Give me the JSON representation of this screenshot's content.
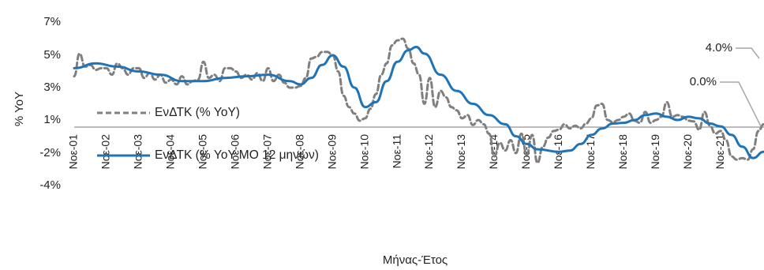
{
  "chart_data": {
    "type": "line",
    "xlabel": "Μήνας-Έτος",
    "ylabel": "% YoY",
    "x_unit": "month",
    "x_start": "Noε-01",
    "ylim": [
      -4,
      7
    ],
    "y_ticks": [
      "7%",
      "5%",
      "3%",
      "1%",
      "-2%",
      "-4%"
    ],
    "y_tick_values": [
      7,
      5,
      3,
      1,
      -2,
      -4
    ],
    "x_tick_labels": [
      "Noε-01",
      "Noε-02",
      "Noε-03",
      "Noε-04",
      "Noε-05",
      "Noε-06",
      "Noε-07",
      "Noε-08",
      "Noε-09",
      "Noε-10",
      "Noε-11",
      "Noε-12",
      "Noε-13",
      "Noε-14",
      "Noε-15",
      "Noε-16",
      "Noε-17",
      "Noε-18",
      "Noε-19",
      "Noε-20",
      "Noε-21"
    ],
    "grid": false,
    "reference_line": 0,
    "legend_position": "left-center",
    "annotations": [
      {
        "label": "4.0%",
        "month": 240,
        "value": 4.0
      },
      {
        "label": "0.0%",
        "month": 240,
        "value": 0.0
      }
    ],
    "colors": {
      "yoy": "#7f7f7f",
      "ma12": "#1f73b7",
      "reference": "#a6a6a6"
    },
    "series": [
      {
        "name": "ΕνΔΤΚ (% YoY)",
        "style": "dashed",
        "knots": [
          [
            0,
            3.7
          ],
          [
            2,
            5.1
          ],
          [
            4,
            4.3
          ],
          [
            6,
            4.4
          ],
          [
            8,
            4.1
          ],
          [
            10,
            4.2
          ],
          [
            12,
            4.2
          ],
          [
            14,
            3.8
          ],
          [
            16,
            4.5
          ],
          [
            18,
            4.2
          ],
          [
            20,
            3.8
          ],
          [
            22,
            4.2
          ],
          [
            24,
            4.2
          ],
          [
            26,
            3.6
          ],
          [
            28,
            3.9
          ],
          [
            30,
            3.5
          ],
          [
            32,
            3.8
          ],
          [
            34,
            3.3
          ],
          [
            36,
            3.5
          ],
          [
            38,
            3.2
          ],
          [
            40,
            3.7
          ],
          [
            42,
            3.2
          ],
          [
            44,
            3.4
          ],
          [
            46,
            3.5
          ],
          [
            48,
            4.6
          ],
          [
            50,
            3.6
          ],
          [
            52,
            3.8
          ],
          [
            54,
            3.4
          ],
          [
            56,
            4.2
          ],
          [
            58,
            4.2
          ],
          [
            60,
            4.0
          ],
          [
            62,
            3.6
          ],
          [
            64,
            3.8
          ],
          [
            66,
            3.5
          ],
          [
            68,
            3.9
          ],
          [
            70,
            3.4
          ],
          [
            72,
            4.2
          ],
          [
            74,
            3.4
          ],
          [
            76,
            3.8
          ],
          [
            78,
            3.3
          ],
          [
            80,
            3.0
          ],
          [
            82,
            3.0
          ],
          [
            84,
            3.1
          ],
          [
            86,
            3.6
          ],
          [
            88,
            4.8
          ],
          [
            90,
            4.9
          ],
          [
            92,
            5.2
          ],
          [
            94,
            5.2
          ],
          [
            96,
            5.0
          ],
          [
            98,
            4.0
          ],
          [
            100,
            2.5
          ],
          [
            102,
            1.8
          ],
          [
            104,
            1.4
          ],
          [
            106,
            0.9
          ],
          [
            108,
            1.1
          ],
          [
            110,
            1.7
          ],
          [
            112,
            2.6
          ],
          [
            114,
            3.8
          ],
          [
            116,
            4.5
          ],
          [
            118,
            5.6
          ],
          [
            120,
            5.9
          ],
          [
            122,
            6.0
          ],
          [
            124,
            5.4
          ],
          [
            126,
            4.5
          ],
          [
            128,
            3.8
          ],
          [
            130,
            2.0
          ],
          [
            132,
            3.6
          ],
          [
            134,
            1.8
          ],
          [
            136,
            2.8
          ],
          [
            138,
            2.4
          ],
          [
            140,
            1.8
          ],
          [
            142,
            1.6
          ],
          [
            144,
            1.1
          ],
          [
            146,
            1.3
          ],
          [
            148,
            0.3
          ],
          [
            150,
            1.0
          ],
          [
            152,
            0.4
          ],
          [
            154,
            -0.5
          ],
          [
            156,
            -2.2
          ],
          [
            158,
            -1.2
          ],
          [
            160,
            -1.8
          ],
          [
            162,
            -1.0
          ],
          [
            164,
            -2.0
          ],
          [
            166,
            -0.5
          ],
          [
            168,
            -2.1
          ],
          [
            170,
            -0.6
          ],
          [
            172,
            -2.6
          ],
          [
            174,
            -1.5
          ],
          [
            176,
            -0.8
          ],
          [
            178,
            -0.3
          ],
          [
            180,
            -0.2
          ],
          [
            182,
            0.4
          ],
          [
            184,
            -0.1
          ],
          [
            186,
            0.2
          ],
          [
            188,
            -0.1
          ],
          [
            190,
            0.5
          ],
          [
            192,
            1.1
          ],
          [
            194,
            1.9
          ],
          [
            196,
            2.0
          ],
          [
            198,
            1.0
          ],
          [
            200,
            0.7
          ],
          [
            202,
            1.0
          ],
          [
            204,
            1.2
          ],
          [
            206,
            1.4
          ],
          [
            208,
            0.9
          ],
          [
            210,
            0.6
          ],
          [
            212,
            1.5
          ],
          [
            214,
            0.6
          ],
          [
            216,
            1.0
          ],
          [
            218,
            1.2
          ],
          [
            220,
            2.1
          ],
          [
            222,
            1.2
          ],
          [
            224,
            1.3
          ],
          [
            226,
            1.2
          ],
          [
            228,
            0.9
          ],
          [
            230,
            0.8
          ],
          [
            232,
            -0.2
          ],
          [
            234,
            1.5
          ],
          [
            236,
            0.2
          ],
          [
            238,
            -0.5
          ],
          [
            240,
            -0.3
          ],
          [
            242,
            -1.0
          ],
          [
            244,
            -2.2
          ],
          [
            246,
            -2.4
          ],
          [
            248,
            -2.3
          ],
          [
            250,
            -2.4
          ],
          [
            252,
            -1.7
          ],
          [
            254,
            -0.3
          ],
          [
            256,
            0.4
          ],
          [
            258,
            1.5
          ],
          [
            260,
            4.0
          ]
        ]
      },
      {
        "name": "ΕνΔΤΚ (% YoY MO 12 μηνών)",
        "style": "solid",
        "knots": [
          [
            0,
            4.2
          ],
          [
            8,
            4.5
          ],
          [
            16,
            4.3
          ],
          [
            24,
            4.0
          ],
          [
            32,
            3.8
          ],
          [
            40,
            3.4
          ],
          [
            48,
            3.4
          ],
          [
            56,
            3.6
          ],
          [
            64,
            3.7
          ],
          [
            72,
            3.8
          ],
          [
            80,
            3.4
          ],
          [
            84,
            3.2
          ],
          [
            88,
            3.6
          ],
          [
            92,
            4.4
          ],
          [
            96,
            5.0
          ],
          [
            100,
            4.3
          ],
          [
            104,
            3.0
          ],
          [
            108,
            1.8
          ],
          [
            112,
            2.1
          ],
          [
            116,
            3.4
          ],
          [
            120,
            4.6
          ],
          [
            124,
            5.3
          ],
          [
            127,
            5.5
          ],
          [
            130,
            5.1
          ],
          [
            136,
            3.8
          ],
          [
            142,
            2.8
          ],
          [
            148,
            2.0
          ],
          [
            154,
            1.3
          ],
          [
            160,
            0.4
          ],
          [
            164,
            -0.7
          ],
          [
            168,
            -1.3
          ],
          [
            172,
            -1.7
          ],
          [
            180,
            -1.9
          ],
          [
            184,
            -1.8
          ],
          [
            188,
            -1.3
          ],
          [
            192,
            -0.6
          ],
          [
            196,
            -0.1
          ],
          [
            200,
            0.5
          ],
          [
            204,
            0.6
          ],
          [
            208,
            1.0
          ],
          [
            212,
            1.3
          ],
          [
            216,
            1.4
          ],
          [
            220,
            1.2
          ],
          [
            224,
            1.0
          ],
          [
            228,
            1.2
          ],
          [
            232,
            1.1
          ],
          [
            236,
            0.5
          ],
          [
            240,
            0.1
          ],
          [
            244,
            -0.6
          ],
          [
            248,
            -1.5
          ],
          [
            252,
            -2.3
          ],
          [
            256,
            -1.9
          ],
          [
            260,
            -0.6
          ],
          [
            264,
            0.0
          ]
        ]
      }
    ]
  }
}
